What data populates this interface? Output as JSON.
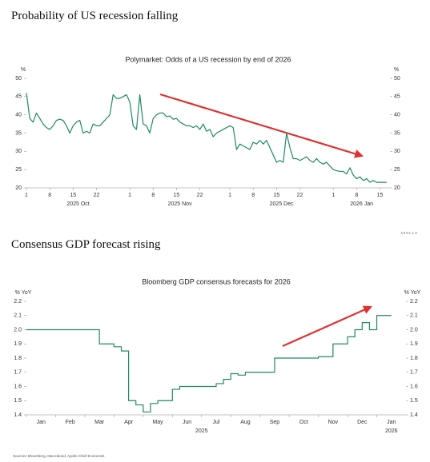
{
  "headings": [
    "Probability of US recession falling",
    "Consensus GDP forecast rising"
  ],
  "logo": "APOLLO",
  "source": "Sources: Bloomberg, Macrobond, Apollo Chief Economist",
  "chart_data": [
    {
      "type": "line",
      "title": "Polymarket: Odds of a US recession by end of 2026",
      "ylabel": "%",
      "y2label": "%",
      "color": "#1f8a65",
      "x": [
        "2025-10-01",
        "2025-10-02",
        "2025-10-03",
        "2025-10-04",
        "2025-10-05",
        "2025-10-06",
        "2025-10-07",
        "2025-10-08",
        "2025-10-09",
        "2025-10-10",
        "2025-10-11",
        "2025-10-12",
        "2025-10-13",
        "2025-10-14",
        "2025-10-15",
        "2025-10-16",
        "2025-10-17",
        "2025-10-18",
        "2025-10-19",
        "2025-10-20",
        "2025-10-21",
        "2025-10-22",
        "2025-10-23",
        "2025-10-24",
        "2025-10-25",
        "2025-10-26",
        "2025-10-27",
        "2025-10-28",
        "2025-10-29",
        "2025-10-30",
        "2025-10-31",
        "2025-11-01",
        "2025-11-02",
        "2025-11-03",
        "2025-11-04",
        "2025-11-05",
        "2025-11-06",
        "2025-11-07",
        "2025-11-08",
        "2025-11-09",
        "2025-11-10",
        "2025-11-11",
        "2025-11-12",
        "2025-11-13",
        "2025-11-14",
        "2025-11-15",
        "2025-11-16",
        "2025-11-17",
        "2025-11-18",
        "2025-11-19",
        "2025-11-20",
        "2025-11-21",
        "2025-11-22",
        "2025-11-23",
        "2025-11-24",
        "2025-11-25",
        "2025-11-26",
        "2025-11-27",
        "2025-11-28",
        "2025-11-29",
        "2025-11-30",
        "2025-12-01",
        "2025-12-02",
        "2025-12-03",
        "2025-12-04",
        "2025-12-05",
        "2025-12-06",
        "2025-12-07",
        "2025-12-08",
        "2025-12-09",
        "2025-12-10",
        "2025-12-11",
        "2025-12-12",
        "2025-12-13",
        "2025-12-14",
        "2025-12-15",
        "2025-12-16",
        "2025-12-17",
        "2025-12-18",
        "2025-12-19",
        "2025-12-20",
        "2025-12-21",
        "2025-12-22",
        "2025-12-23",
        "2025-12-24",
        "2025-12-25",
        "2025-12-26",
        "2025-12-27",
        "2025-12-28",
        "2025-12-29",
        "2025-12-30",
        "2025-12-31",
        "2026-01-01",
        "2026-01-02",
        "2026-01-03",
        "2026-01-04",
        "2026-01-05",
        "2026-01-06",
        "2026-01-07",
        "2026-01-08",
        "2026-01-09",
        "2026-01-10",
        "2026-01-11",
        "2026-01-12",
        "2026-01-13",
        "2026-01-14",
        "2026-01-15",
        "2026-01-16",
        "2026-01-17"
      ],
      "values": [
        46,
        39,
        38,
        40.5,
        39,
        37.5,
        36.5,
        36,
        37,
        38.5,
        38.8,
        38.5,
        37,
        35,
        37,
        38,
        38.5,
        35,
        35.5,
        35,
        37.5,
        37,
        37,
        38,
        39,
        40,
        45.5,
        44.5,
        44.5,
        45,
        45.5,
        43.5,
        37,
        36,
        45.5,
        37.5,
        37,
        35,
        39,
        40,
        40.5,
        40.5,
        39.5,
        39.7,
        38.8,
        39,
        38,
        37.5,
        37,
        37,
        36.5,
        37,
        36,
        37.5,
        35.5,
        36,
        34,
        35,
        35.5,
        36,
        36.5,
        37,
        36.5,
        30.5,
        32,
        31.5,
        31,
        30.5,
        32.5,
        32,
        33,
        32,
        33,
        31,
        29,
        27,
        27.5,
        27,
        35,
        31,
        28,
        28,
        27.5,
        28,
        28.5,
        27.5,
        27,
        28,
        27,
        26.5,
        27,
        26,
        25,
        24.7,
        24.5,
        24.5,
        23.8,
        25.5,
        23.5,
        22.5,
        23,
        22,
        22.5,
        21.5,
        22,
        21.5,
        21.5,
        21.5,
        21.5
      ],
      "xlim": [
        "2025-10-01",
        "2026-01-18"
      ],
      "xticks": [
        {
          "value": "2025-10-01",
          "label": "1"
        },
        {
          "value": "2025-10-08",
          "label": "8"
        },
        {
          "value": "2025-10-15",
          "label": "15"
        },
        {
          "value": "2025-10-22",
          "label": "22"
        },
        {
          "value": "2025-11-01",
          "label": "1"
        },
        {
          "value": "2025-11-08",
          "label": "8"
        },
        {
          "value": "2025-11-15",
          "label": "15"
        },
        {
          "value": "2025-11-22",
          "label": "22"
        },
        {
          "value": "2025-12-01",
          "label": "1"
        },
        {
          "value": "2025-12-08",
          "label": "8"
        },
        {
          "value": "2025-12-15",
          "label": "15"
        },
        {
          "value": "2025-12-22",
          "label": "22"
        },
        {
          "value": "2026-01-01",
          "label": "1"
        },
        {
          "value": "2026-01-08",
          "label": "8"
        },
        {
          "value": "2026-01-15",
          "label": "15"
        }
      ],
      "xgroups": [
        {
          "value": "2025-10",
          "label": "2025 Oct"
        },
        {
          "value": "2025-11",
          "label": "2025 Nov"
        },
        {
          "value": "2025-12",
          "label": "2025 Dec"
        },
        {
          "value": "2026-01",
          "label": "2026 Jan"
        }
      ],
      "ylim": [
        20,
        50
      ],
      "yticks": [
        20,
        25,
        30,
        35,
        40,
        45,
        50
      ],
      "y2lim": [
        20,
        50
      ],
      "y2ticks": [
        20,
        25,
        30,
        35,
        40,
        45,
        50
      ]
    },
    {
      "type": "line",
      "step": "post",
      "title": "Bloomberg GDP consensus forecasts for 2026",
      "ylabel": "% YoY",
      "y2label": "% YoY",
      "color": "#1f8a65",
      "x": [
        "2025-01",
        "2025-01",
        "2025-01",
        "2025-01",
        "2025-02",
        "2025-02",
        "2025-02",
        "2025-02",
        "2025-03",
        "2025-03",
        "2025-03",
        "2025-03",
        "2025-04",
        "2025-04",
        "2025-04",
        "2025-04",
        "2025-05",
        "2025-05",
        "2025-05",
        "2025-05",
        "2025-06",
        "2025-06",
        "2025-06",
        "2025-06",
        "2025-07",
        "2025-07",
        "2025-07",
        "2025-07",
        "2025-08",
        "2025-08",
        "2025-08",
        "2025-08",
        "2025-09",
        "2025-09",
        "2025-09",
        "2025-09",
        "2025-10",
        "2025-10",
        "2025-10",
        "2025-10",
        "2025-11",
        "2025-11",
        "2025-11",
        "2025-11",
        "2025-12",
        "2025-12",
        "2025-12",
        "2025-12",
        "2026-01",
        "2026-01",
        "2026-01",
        "2026-01"
      ],
      "values": [
        2,
        2,
        2,
        2,
        2,
        2,
        2,
        2,
        2,
        2,
        1.9,
        1.9,
        1.88,
        1.85,
        1.5,
        1.47,
        1.42,
        1.48,
        1.5,
        1.5,
        1.58,
        1.6,
        1.6,
        1.6,
        1.6,
        1.6,
        1.62,
        1.65,
        1.69,
        1.68,
        1.7,
        1.7,
        1.7,
        1.7,
        1.8,
        1.8,
        1.8,
        1.8,
        1.8,
        1.8,
        1.81,
        1.81,
        1.9,
        1.9,
        1.95,
        2,
        2.05,
        2,
        2.1,
        2.1,
        2.1,
        null
      ],
      "xlim": [
        "2025-01",
        "2026-01"
      ],
      "xticks": [
        {
          "value": "2025-01",
          "label": "Jan"
        },
        {
          "value": "2025-02",
          "label": "Feb"
        },
        {
          "value": "2025-03",
          "label": "Mar"
        },
        {
          "value": "2025-04",
          "label": "Apr"
        },
        {
          "value": "2025-05",
          "label": "May"
        },
        {
          "value": "2025-06",
          "label": "Jun"
        },
        {
          "value": "2025-07",
          "label": "Jul"
        },
        {
          "value": "2025-08",
          "label": "Aug"
        },
        {
          "value": "2025-09",
          "label": "Sep"
        },
        {
          "value": "2025-10",
          "label": "Oct"
        },
        {
          "value": "2025-11",
          "label": "Nov"
        },
        {
          "value": "2025-12",
          "label": "Dec"
        },
        {
          "value": "2026-01",
          "label": "Jan"
        }
      ],
      "xgroups": [
        {
          "value": "2025",
          "label": "2025"
        },
        {
          "value": "2026",
          "label": "2026"
        }
      ],
      "ylim": [
        1.4,
        2.2
      ],
      "yticks": [
        1.4,
        1.5,
        1.6,
        1.7,
        1.8,
        1.9,
        {
          "value": 2,
          "label": "2.0"
        },
        2.1,
        2.2
      ],
      "y2lim": [
        1.4,
        2.2
      ],
      "y2ticks": [
        1.4,
        1.5,
        1.6,
        1.7,
        1.8,
        1.9,
        {
          "value": 2,
          "label": "2.0"
        },
        2.1,
        2.2
      ]
    }
  ]
}
